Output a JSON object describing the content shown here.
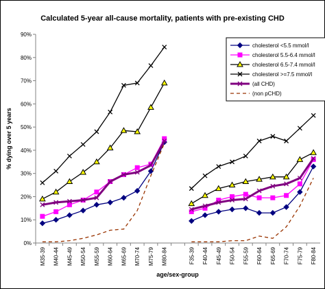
{
  "chart_data": {
    "type": "line",
    "title": "Calculated 5-year all-cause mortality, patients with pre-existing CHD",
    "y_label": "% dying over 5 years",
    "x_label": "age/sex-group",
    "categories": [
      "M35-39",
      "M40-44",
      "M45-49",
      "M50-54",
      "M55-59",
      "M60-64",
      "M65-69",
      "M70-74",
      "M75-79",
      "M80-84",
      null,
      "F35-39",
      "F40-44",
      "F45-49",
      "F50-54",
      "F55-59",
      "F60-64",
      "F65-69",
      "F70-74",
      "F75-79",
      "F80-84"
    ],
    "ylim": [
      0,
      90
    ],
    "yticks": [
      {
        "value": 0,
        "label": "0%"
      },
      {
        "value": 10,
        "label": "10%"
      },
      {
        "value": 20,
        "label": "20%"
      },
      {
        "value": 30,
        "label": "30%"
      },
      {
        "value": 40,
        "label": "40%"
      },
      {
        "value": 50,
        "label": "50%"
      },
      {
        "value": 60,
        "label": "60%"
      },
      {
        "value": 70,
        "label": "70%"
      },
      {
        "value": 80,
        "label": "80%"
      },
      {
        "value": 90,
        "label": "90%"
      }
    ],
    "grid": false,
    "legend": "top-right",
    "series": [
      {
        "name": "cholesterol <5.5 mmol/l",
        "color": "#000080",
        "marker": "diamond",
        "marker_fill": "#000080",
        "values": [
          8.5,
          10,
          12,
          14,
          16.5,
          17.5,
          19.5,
          22.5,
          31,
          43.5,
          null,
          9.5,
          12,
          13.5,
          14.5,
          15,
          13,
          13,
          15.5,
          22,
          33
        ]
      },
      {
        "name": "cholesterol 5.5-6.4 mmol/l",
        "color": "#ff00ff",
        "marker": "square",
        "marker_fill": "#ff00ff",
        "values": [
          11.5,
          13.5,
          16.5,
          18.5,
          22,
          26.5,
          29.5,
          32.5,
          34,
          45,
          null,
          13.5,
          15,
          18.5,
          20,
          21,
          19.5,
          19.5,
          20.5,
          25.5,
          36
        ]
      },
      {
        "name": "cholesterol 6.5-7.4 mmol/l",
        "color": "#000000",
        "marker": "triangle",
        "marker_fill": "#ffff00",
        "values": [
          19,
          22,
          26.5,
          30.5,
          35,
          41,
          48.5,
          48,
          58.5,
          69,
          null,
          17,
          20.5,
          23.5,
          25,
          26.5,
          27.5,
          28.5,
          28.5,
          36,
          39
        ]
      },
      {
        "name": "cholesterol >=7.5 mmol/l",
        "color": "#000000",
        "marker": "x",
        "marker_fill": "#000000",
        "values": [
          26,
          31,
          37.5,
          42.5,
          48,
          56.5,
          68,
          69,
          76.5,
          84.5,
          null,
          23.5,
          29,
          33,
          35,
          37.5,
          44,
          46,
          44,
          49.5,
          55
        ]
      },
      {
        "name": "(all CHD)",
        "color": "#800080",
        "marker": "x",
        "marker_fill": "#800080",
        "line_width": 3,
        "values": [
          16.5,
          17.5,
          18,
          18.5,
          19.5,
          26.5,
          29.5,
          30.5,
          33.5,
          44,
          null,
          14.5,
          16,
          17.5,
          18.5,
          19,
          22.5,
          24.5,
          25.5,
          28,
          36.5
        ]
      },
      {
        "name": "(non pCHD)",
        "color": "#993300",
        "marker": "none",
        "dash": true,
        "values": [
          0.5,
          0.5,
          1,
          2,
          3.5,
          5.5,
          6,
          14,
          29,
          43,
          null,
          0.5,
          0.5,
          0.5,
          1,
          1,
          3,
          2,
          7,
          16,
          28
        ]
      }
    ]
  }
}
